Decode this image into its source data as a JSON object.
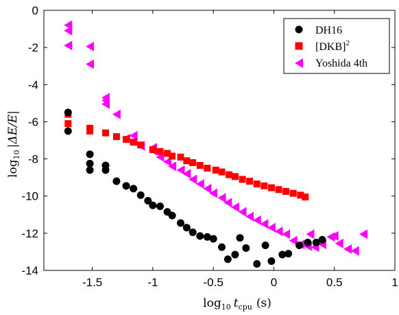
{
  "chart_data": {
    "type": "scatter",
    "title": "",
    "xlabel_main": "log",
    "xlabel_sub": "10",
    "xlabel_var": "t",
    "xlabel_var_sub": "cpu",
    "xlabel_units": "(s)",
    "ylabel_main": "log",
    "ylabel_sub": "10",
    "ylabel_rest": "|ΔE/E|",
    "xlim": [
      -1.9,
      1.0
    ],
    "ylim": [
      -14,
      0
    ],
    "xticks": [
      -1.5,
      -1,
      -0.5,
      0,
      0.5,
      1
    ],
    "xtick_labels": [
      "-1.5",
      "-1",
      "-0.5",
      "0",
      "0.5",
      "1"
    ],
    "yticks": [
      -14,
      -12,
      -10,
      -8,
      -6,
      -4,
      -2,
      0
    ],
    "ytick_labels": [
      "-14",
      "-12",
      "-10",
      "-8",
      "-6",
      "-4",
      "-2",
      "0"
    ],
    "grid": false,
    "legend_position": "top-right",
    "legend_label_dkb_base": "[DKB]",
    "legend_label_dkb_sup": "2",
    "series": [
      {
        "name": "DH16",
        "marker": "circle",
        "color": "#000000",
        "points": [
          [
            -1.7,
            -5.5
          ],
          [
            -1.7,
            -6.5
          ],
          [
            -1.52,
            -7.75
          ],
          [
            -1.52,
            -8.25
          ],
          [
            -1.52,
            -8.6
          ],
          [
            -1.39,
            -8.35
          ],
          [
            -1.39,
            -8.6
          ],
          [
            -1.3,
            -9.2
          ],
          [
            -1.22,
            -9.45
          ],
          [
            -1.16,
            -9.6
          ],
          [
            -1.1,
            -9.95
          ],
          [
            -1.04,
            -10.25
          ],
          [
            -1.0,
            -10.5
          ],
          [
            -0.94,
            -10.55
          ],
          [
            -0.88,
            -10.85
          ],
          [
            -0.84,
            -11.05
          ],
          [
            -0.77,
            -11.45
          ],
          [
            -0.72,
            -11.7
          ],
          [
            -0.67,
            -11.95
          ],
          [
            -0.61,
            -12.15
          ],
          [
            -0.55,
            -12.2
          ],
          [
            -0.5,
            -12.3
          ],
          [
            -0.43,
            -12.75
          ],
          [
            -0.38,
            -13.4
          ],
          [
            -0.32,
            -13.15
          ],
          [
            -0.28,
            -12.25
          ],
          [
            -0.23,
            -12.8
          ],
          [
            -0.14,
            -13.65
          ],
          [
            -0.07,
            -12.65
          ],
          [
            -0.02,
            -13.5
          ],
          [
            0.07,
            -13.15
          ],
          [
            0.12,
            -13.1
          ],
          [
            0.21,
            -12.65
          ],
          [
            0.28,
            -12.5
          ],
          [
            0.35,
            -12.5
          ],
          [
            0.4,
            -12.35
          ]
        ]
      },
      {
        "name": "[DKB]2",
        "marker": "square",
        "color": "#ff0000",
        "points": [
          [
            -1.7,
            -5.6
          ],
          [
            -1.7,
            -6.1
          ],
          [
            -1.52,
            -6.35
          ],
          [
            -1.52,
            -6.5
          ],
          [
            -1.39,
            -6.6
          ],
          [
            -1.3,
            -6.8
          ],
          [
            -1.22,
            -6.95
          ],
          [
            -1.16,
            -7.1
          ],
          [
            -1.1,
            -7.25
          ],
          [
            -1.0,
            -7.5
          ],
          [
            -0.94,
            -7.6
          ],
          [
            -0.88,
            -7.7
          ],
          [
            -0.84,
            -7.85
          ],
          [
            -0.77,
            -7.9
          ],
          [
            -0.72,
            -8.1
          ],
          [
            -0.67,
            -8.2
          ],
          [
            -0.61,
            -8.35
          ],
          [
            -0.55,
            -8.5
          ],
          [
            -0.48,
            -8.6
          ],
          [
            -0.43,
            -8.7
          ],
          [
            -0.37,
            -8.85
          ],
          [
            -0.32,
            -8.95
          ],
          [
            -0.26,
            -9.1
          ],
          [
            -0.2,
            -9.2
          ],
          [
            -0.14,
            -9.35
          ],
          [
            -0.08,
            -9.45
          ],
          [
            -0.02,
            -9.55
          ],
          [
            0.04,
            -9.65
          ],
          [
            0.1,
            -9.75
          ],
          [
            0.16,
            -9.85
          ],
          [
            0.22,
            -9.95
          ],
          [
            0.26,
            -10.05
          ]
        ]
      },
      {
        "name": "Yoshida 4th",
        "marker": "triangle-left",
        "color": "#ff00ff",
        "points": [
          [
            -1.7,
            -0.8
          ],
          [
            -1.7,
            -1.1
          ],
          [
            -1.7,
            -1.9
          ],
          [
            -1.52,
            -1.95
          ],
          [
            -1.52,
            -2.9
          ],
          [
            -1.39,
            -4.7
          ],
          [
            -1.39,
            -4.85
          ],
          [
            -1.39,
            -5.05
          ],
          [
            -1.3,
            -5.6
          ],
          [
            -1.22,
            -6.9
          ],
          [
            -1.16,
            -6.75
          ],
          [
            -1.16,
            -7.05
          ],
          [
            -1.1,
            -7.3
          ],
          [
            -1.0,
            -7.4
          ],
          [
            -1.0,
            -7.55
          ],
          [
            -0.94,
            -7.9
          ],
          [
            -0.88,
            -8.15
          ],
          [
            -0.84,
            -8.4
          ],
          [
            -0.77,
            -8.6
          ],
          [
            -0.72,
            -8.8
          ],
          [
            -0.67,
            -9.1
          ],
          [
            -0.61,
            -9.35
          ],
          [
            -0.55,
            -9.6
          ],
          [
            -0.5,
            -9.85
          ],
          [
            -0.43,
            -10.1
          ],
          [
            -0.38,
            -10.35
          ],
          [
            -0.32,
            -10.6
          ],
          [
            -0.26,
            -10.85
          ],
          [
            -0.2,
            -11.1
          ],
          [
            -0.14,
            -11.3
          ],
          [
            -0.08,
            -11.5
          ],
          [
            -0.02,
            -11.7
          ],
          [
            0.04,
            -11.9
          ],
          [
            0.1,
            -12.05
          ],
          [
            0.16,
            -12.4
          ],
          [
            0.22,
            -12.6
          ],
          [
            0.28,
            -12.7
          ],
          [
            0.34,
            -12.75
          ],
          [
            0.4,
            -12.6
          ],
          [
            0.47,
            -12.2
          ],
          [
            0.54,
            -12.55
          ],
          [
            0.61,
            -12.85
          ],
          [
            0.67,
            -12.95
          ],
          [
            0.74,
            -12.05
          ],
          [
            0.3,
            -12.05
          ],
          [
            0.5,
            -12.15
          ]
        ]
      }
    ]
  }
}
